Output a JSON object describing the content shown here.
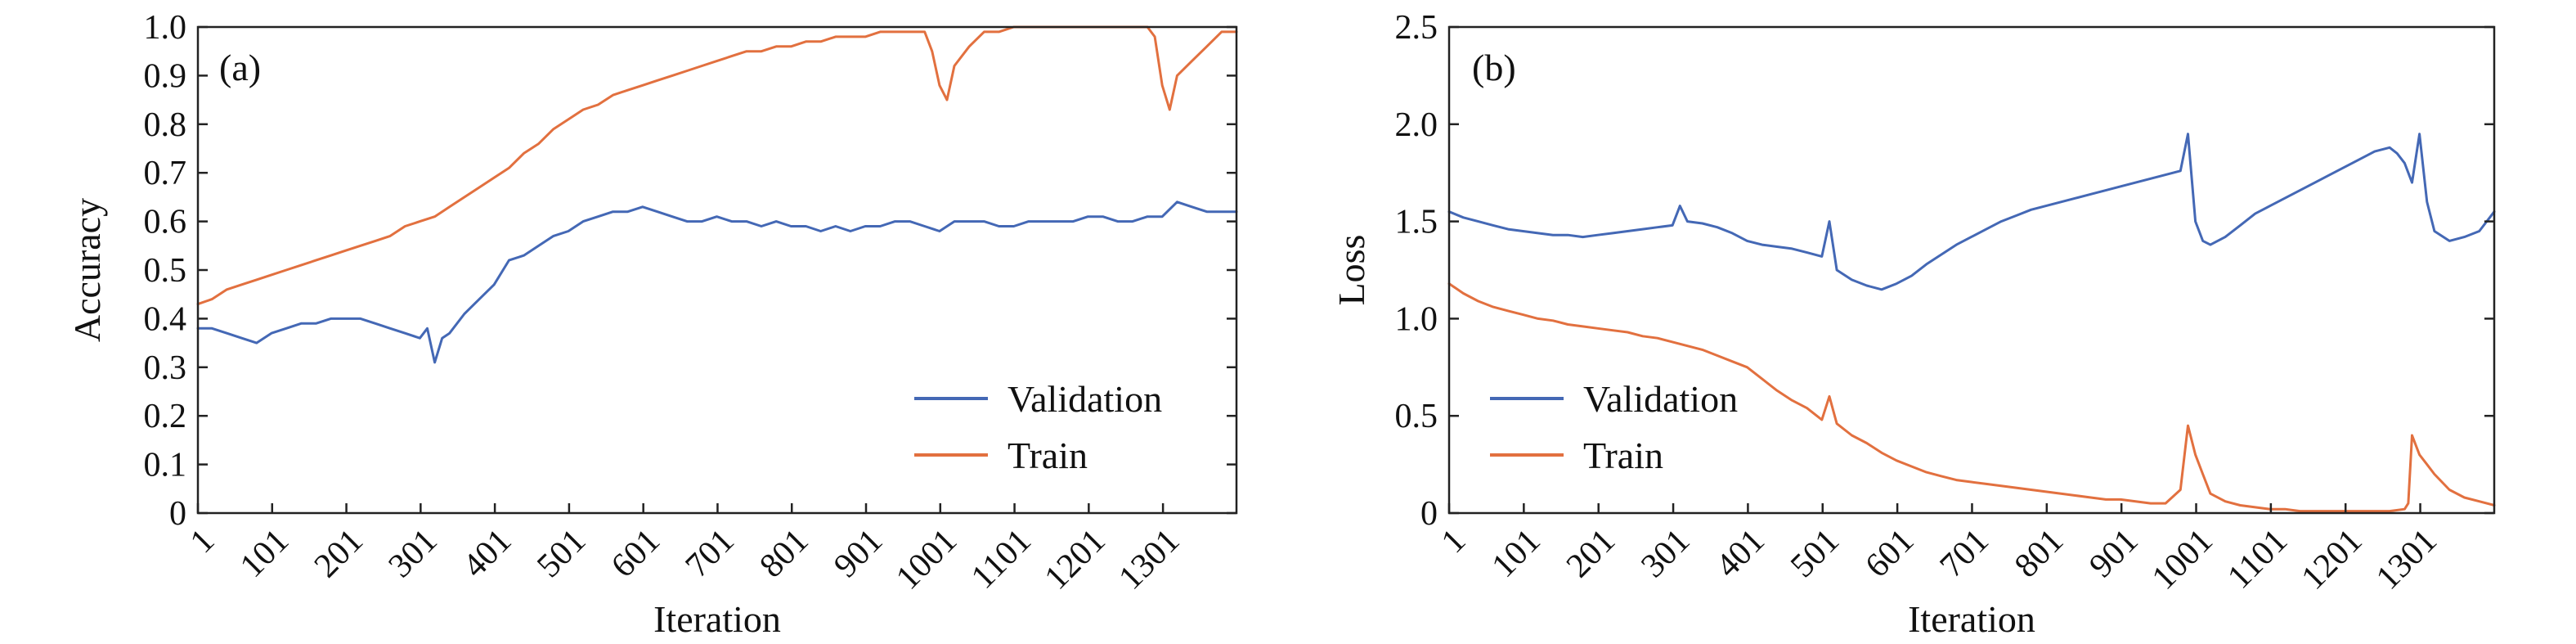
{
  "colors": {
    "validation": "#4468B5",
    "train": "#E2703F"
  },
  "chart_data": [
    {
      "id": "accuracy",
      "type": "line",
      "panel_label": "(a)",
      "title": "",
      "xlabel": "Iteration",
      "ylabel": "Accuracy",
      "xlim": [
        1,
        1400
      ],
      "ylim": [
        0,
        1.0
      ],
      "x_ticks": [
        1,
        101,
        201,
        301,
        401,
        501,
        601,
        701,
        801,
        901,
        1001,
        1101,
        1201,
        1301
      ],
      "y_ticks": [
        0,
        0.1,
        0.2,
        0.3,
        0.4,
        0.5,
        0.6,
        0.7,
        0.8,
        0.9,
        1.0
      ],
      "y_tick_labels": [
        "0",
        "0.1",
        "0.2",
        "0.3",
        "0.4",
        "0.5",
        "0.6",
        "0.7",
        "0.8",
        "0.9",
        "1.0"
      ],
      "legend": {
        "placement": "lower-right",
        "entries": [
          "Validation",
          "Train"
        ]
      },
      "grid": false,
      "series": [
        {
          "name": "Validation",
          "color_key": "validation",
          "x": [
            1,
            20,
            40,
            60,
            80,
            100,
            120,
            140,
            160,
            180,
            200,
            220,
            240,
            260,
            280,
            300,
            310,
            320,
            330,
            340,
            360,
            380,
            400,
            420,
            440,
            460,
            480,
            500,
            520,
            540,
            560,
            580,
            600,
            620,
            640,
            660,
            680,
            700,
            720,
            740,
            760,
            780,
            800,
            820,
            840,
            860,
            880,
            900,
            920,
            940,
            960,
            980,
            1000,
            1020,
            1040,
            1060,
            1080,
            1100,
            1120,
            1140,
            1160,
            1180,
            1200,
            1220,
            1240,
            1260,
            1280,
            1300,
            1320,
            1340,
            1360,
            1380,
            1400
          ],
          "y": [
            0.38,
            0.38,
            0.37,
            0.36,
            0.35,
            0.37,
            0.38,
            0.39,
            0.39,
            0.4,
            0.4,
            0.4,
            0.39,
            0.38,
            0.37,
            0.36,
            0.38,
            0.31,
            0.36,
            0.37,
            0.41,
            0.44,
            0.47,
            0.52,
            0.53,
            0.55,
            0.57,
            0.58,
            0.6,
            0.61,
            0.62,
            0.62,
            0.63,
            0.62,
            0.61,
            0.6,
            0.6,
            0.61,
            0.6,
            0.6,
            0.59,
            0.6,
            0.59,
            0.59,
            0.58,
            0.59,
            0.58,
            0.59,
            0.59,
            0.6,
            0.6,
            0.59,
            0.58,
            0.6,
            0.6,
            0.6,
            0.59,
            0.59,
            0.6,
            0.6,
            0.6,
            0.6,
            0.61,
            0.61,
            0.6,
            0.6,
            0.61,
            0.61,
            0.64,
            0.63,
            0.62,
            0.62,
            0.62
          ]
        },
        {
          "name": "Train",
          "color_key": "train",
          "x": [
            1,
            20,
            40,
            60,
            80,
            100,
            120,
            140,
            160,
            180,
            200,
            220,
            240,
            260,
            280,
            300,
            320,
            340,
            360,
            380,
            400,
            420,
            440,
            460,
            480,
            500,
            520,
            540,
            560,
            580,
            600,
            620,
            640,
            660,
            680,
            700,
            720,
            740,
            760,
            780,
            800,
            820,
            840,
            860,
            880,
            900,
            920,
            940,
            960,
            980,
            990,
            1000,
            1010,
            1020,
            1040,
            1060,
            1080,
            1100,
            1120,
            1140,
            1160,
            1180,
            1200,
            1220,
            1240,
            1260,
            1280,
            1290,
            1300,
            1310,
            1320,
            1340,
            1360,
            1380,
            1400
          ],
          "y": [
            0.43,
            0.44,
            0.46,
            0.47,
            0.48,
            0.49,
            0.5,
            0.51,
            0.52,
            0.53,
            0.54,
            0.55,
            0.56,
            0.57,
            0.59,
            0.6,
            0.61,
            0.63,
            0.65,
            0.67,
            0.69,
            0.71,
            0.74,
            0.76,
            0.79,
            0.81,
            0.83,
            0.84,
            0.86,
            0.87,
            0.88,
            0.89,
            0.9,
            0.91,
            0.92,
            0.93,
            0.94,
            0.95,
            0.95,
            0.96,
            0.96,
            0.97,
            0.97,
            0.98,
            0.98,
            0.98,
            0.99,
            0.99,
            0.99,
            0.99,
            0.95,
            0.88,
            0.85,
            0.92,
            0.96,
            0.99,
            0.99,
            1.0,
            1.0,
            1.0,
            1.0,
            1.0,
            1.0,
            1.0,
            1.0,
            1.0,
            1.0,
            0.98,
            0.88,
            0.83,
            0.9,
            0.93,
            0.96,
            0.99,
            0.99
          ]
        }
      ]
    },
    {
      "id": "loss",
      "type": "line",
      "panel_label": "(b)",
      "title": "",
      "xlabel": "Iteration",
      "ylabel": "Loss",
      "xlim": [
        1,
        1400
      ],
      "ylim": [
        0,
        2.5
      ],
      "x_ticks": [
        1,
        101,
        201,
        301,
        401,
        501,
        601,
        701,
        801,
        901,
        1001,
        1101,
        1201,
        1301
      ],
      "y_ticks": [
        0,
        0.5,
        1.0,
        1.5,
        2.0,
        2.5
      ],
      "y_tick_labels": [
        "0",
        "0.5",
        "1.0",
        "1.5",
        "2.0",
        "2.5"
      ],
      "legend": {
        "placement": "lower-left",
        "entries": [
          "Validation",
          "Train"
        ]
      },
      "grid": false,
      "series": [
        {
          "name": "Validation",
          "color_key": "validation",
          "x": [
            1,
            20,
            40,
            60,
            80,
            100,
            120,
            140,
            160,
            180,
            200,
            220,
            240,
            260,
            280,
            300,
            310,
            320,
            340,
            360,
            380,
            400,
            420,
            440,
            460,
            480,
            500,
            510,
            520,
            540,
            560,
            580,
            600,
            620,
            640,
            660,
            680,
            700,
            720,
            740,
            760,
            780,
            800,
            820,
            840,
            860,
            880,
            900,
            920,
            940,
            960,
            980,
            990,
            1000,
            1010,
            1020,
            1040,
            1060,
            1080,
            1100,
            1120,
            1140,
            1160,
            1180,
            1200,
            1220,
            1240,
            1260,
            1270,
            1280,
            1290,
            1300,
            1310,
            1320,
            1340,
            1360,
            1380,
            1400
          ],
          "y": [
            1.55,
            1.52,
            1.5,
            1.48,
            1.46,
            1.45,
            1.44,
            1.43,
            1.43,
            1.42,
            1.43,
            1.44,
            1.45,
            1.46,
            1.47,
            1.48,
            1.58,
            1.5,
            1.49,
            1.47,
            1.44,
            1.4,
            1.38,
            1.37,
            1.36,
            1.34,
            1.32,
            1.5,
            1.25,
            1.2,
            1.17,
            1.15,
            1.18,
            1.22,
            1.28,
            1.33,
            1.38,
            1.42,
            1.46,
            1.5,
            1.53,
            1.56,
            1.58,
            1.6,
            1.62,
            1.64,
            1.66,
            1.68,
            1.7,
            1.72,
            1.74,
            1.76,
            1.95,
            1.5,
            1.4,
            1.38,
            1.42,
            1.48,
            1.54,
            1.58,
            1.62,
            1.66,
            1.7,
            1.74,
            1.78,
            1.82,
            1.86,
            1.88,
            1.85,
            1.8,
            1.7,
            1.95,
            1.6,
            1.45,
            1.4,
            1.42,
            1.45,
            1.55
          ]
        },
        {
          "name": "Train",
          "color_key": "train",
          "x": [
            1,
            20,
            40,
            60,
            80,
            100,
            120,
            140,
            160,
            180,
            200,
            220,
            240,
            260,
            280,
            300,
            320,
            340,
            360,
            380,
            400,
            420,
            440,
            460,
            480,
            500,
            510,
            520,
            540,
            560,
            580,
            600,
            620,
            640,
            660,
            680,
            700,
            720,
            740,
            760,
            780,
            800,
            820,
            840,
            860,
            880,
            900,
            920,
            940,
            960,
            980,
            990,
            1000,
            1010,
            1020,
            1040,
            1060,
            1080,
            1100,
            1120,
            1140,
            1160,
            1180,
            1200,
            1220,
            1240,
            1260,
            1280,
            1285,
            1290,
            1300,
            1310,
            1320,
            1340,
            1360,
            1380,
            1400
          ],
          "y": [
            1.18,
            1.13,
            1.09,
            1.06,
            1.04,
            1.02,
            1.0,
            0.99,
            0.97,
            0.96,
            0.95,
            0.94,
            0.93,
            0.91,
            0.9,
            0.88,
            0.86,
            0.84,
            0.81,
            0.78,
            0.75,
            0.69,
            0.63,
            0.58,
            0.54,
            0.48,
            0.6,
            0.46,
            0.4,
            0.36,
            0.31,
            0.27,
            0.24,
            0.21,
            0.19,
            0.17,
            0.16,
            0.15,
            0.14,
            0.13,
            0.12,
            0.11,
            0.1,
            0.09,
            0.08,
            0.07,
            0.07,
            0.06,
            0.05,
            0.05,
            0.12,
            0.45,
            0.3,
            0.2,
            0.1,
            0.06,
            0.04,
            0.03,
            0.02,
            0.02,
            0.01,
            0.01,
            0.01,
            0.01,
            0.01,
            0.01,
            0.01,
            0.02,
            0.05,
            0.4,
            0.3,
            0.25,
            0.2,
            0.12,
            0.08,
            0.06,
            0.04
          ]
        }
      ]
    }
  ]
}
